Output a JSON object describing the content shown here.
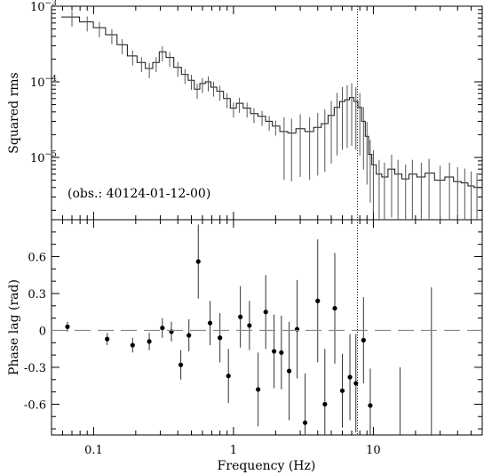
{
  "chart_data": [
    {
      "type": "line",
      "panel": "top",
      "ylabel": "Squared rms",
      "yscale": "log",
      "xscale": "log",
      "xlim": [
        0.05,
        60
      ],
      "ylim": [
        1.5e-06,
        0.001
      ],
      "y_tick_labels": [
        {
          "value": 0.001,
          "base": "10",
          "exp": "−3"
        },
        {
          "value": 0.0001,
          "base": "10",
          "exp": "−4"
        },
        {
          "value": 1e-05,
          "base": "10",
          "exp": "−5"
        }
      ],
      "annotation": "(obs.: 40124-01-12-00)",
      "vline_x": 7.7,
      "series": [
        {
          "x": [
            0.07,
            0.09,
            0.11,
            0.135,
            0.16,
            0.19,
            0.22,
            0.25,
            0.28,
            0.31,
            0.35,
            0.4,
            0.45,
            0.5,
            0.55,
            0.6,
            0.66,
            0.72,
            0.8,
            0.9,
            1.0,
            1.1,
            1.25,
            1.4,
            1.6,
            1.8,
            2.0,
            2.3,
            2.6,
            3.0,
            3.5,
            4.0,
            4.5,
            5.0,
            5.5,
            6.0,
            6.5,
            7.0,
            7.5,
            8.0,
            8.5,
            9.0,
            9.5,
            10.0,
            11.0,
            12.0,
            13.5,
            15.0,
            17.0,
            19.0,
            22.0,
            25.0,
            30.0,
            35.0,
            40.0,
            45.0,
            50.0,
            55.0
          ],
          "y": [
            0.00072,
            0.00062,
            0.00052,
            0.00042,
            0.00031,
            0.00022,
            0.00018,
            0.00015,
            0.00018,
            0.00025,
            0.00021,
            0.000155,
            0.000125,
            0.000105,
            8e-05,
            9.5e-05,
            0.0001,
            8.5e-05,
            7.5e-05,
            6e-05,
            4.5e-05,
            5.2e-05,
            4.5e-05,
            3.8e-05,
            3.5e-05,
            3e-05,
            2.6e-05,
            2.2e-05,
            2.1e-05,
            2.4e-05,
            2.2e-05,
            2.5e-05,
            2.8e-05,
            3.6e-05,
            4.6e-05,
            5.5e-05,
            5.8e-05,
            6.2e-05,
            5.5e-05,
            4.6e-05,
            3e-05,
            1.9e-05,
            1.1e-05,
            8e-06,
            6e-06,
            5.5e-06,
            7e-06,
            6e-06,
            5.2e-06,
            6e-06,
            5.5e-06,
            6.2e-06,
            5e-06,
            5.5e-06,
            4.8e-06,
            4.6e-06,
            4.2e-06,
            4e-06
          ]
        }
      ]
    },
    {
      "type": "scatter",
      "panel": "bottom",
      "xlabel": "Frequency (Hz)",
      "ylabel": "Phase lag (rad)",
      "xscale": "log",
      "xlim": [
        0.05,
        60
      ],
      "ylim": [
        -0.85,
        0.9
      ],
      "y_tick_labels": [
        "0.6",
        "0.3",
        "0",
        "-0.3",
        "-0.6"
      ],
      "y_tick_values": [
        0.6,
        0.3,
        0,
        -0.3,
        -0.6
      ],
      "x_tick_labels": [
        "0.1",
        "1",
        "10"
      ],
      "x_tick_values": [
        0.1,
        1,
        10
      ],
      "hline_y": 0,
      "vline_x": 7.7,
      "series": [
        {
          "x": [
            0.065,
            0.125,
            0.19,
            0.25,
            0.31,
            0.36,
            0.42,
            0.48,
            0.56,
            0.68,
            0.8,
            0.92,
            1.12,
            1.3,
            1.5,
            1.7,
            1.95,
            2.2,
            2.5,
            2.85,
            3.25,
            4.0,
            4.5,
            5.3,
            6.0,
            6.8,
            7.5,
            8.5,
            9.5
          ],
          "y": [
            0.03,
            -0.07,
            -0.12,
            -0.09,
            0.02,
            -0.01,
            -0.28,
            -0.04,
            0.56,
            0.06,
            -0.06,
            -0.37,
            0.11,
            0.04,
            -0.48,
            0.15,
            -0.17,
            -0.18,
            -0.33,
            0.01,
            -0.75,
            0.24,
            -0.6,
            0.18,
            -0.49,
            -0.38,
            -0.43,
            -0.08,
            -0.61
          ],
          "err": [
            0.04,
            0.05,
            0.06,
            0.07,
            0.08,
            0.08,
            0.12,
            0.13,
            0.3,
            0.18,
            0.2,
            0.22,
            0.25,
            0.2,
            0.3,
            0.3,
            0.3,
            0.3,
            0.4,
            0.4,
            0.4,
            0.5,
            0.45,
            0.45,
            0.3,
            0.35,
            0.4,
            0.35,
            0.3
          ]
        }
      ],
      "extra_error_bars_x": [
        15.5,
        26.0
      ],
      "extra_error_bars_range": [
        [
          -0.85,
          -0.3
        ],
        [
          -0.85,
          0.35
        ]
      ]
    }
  ]
}
